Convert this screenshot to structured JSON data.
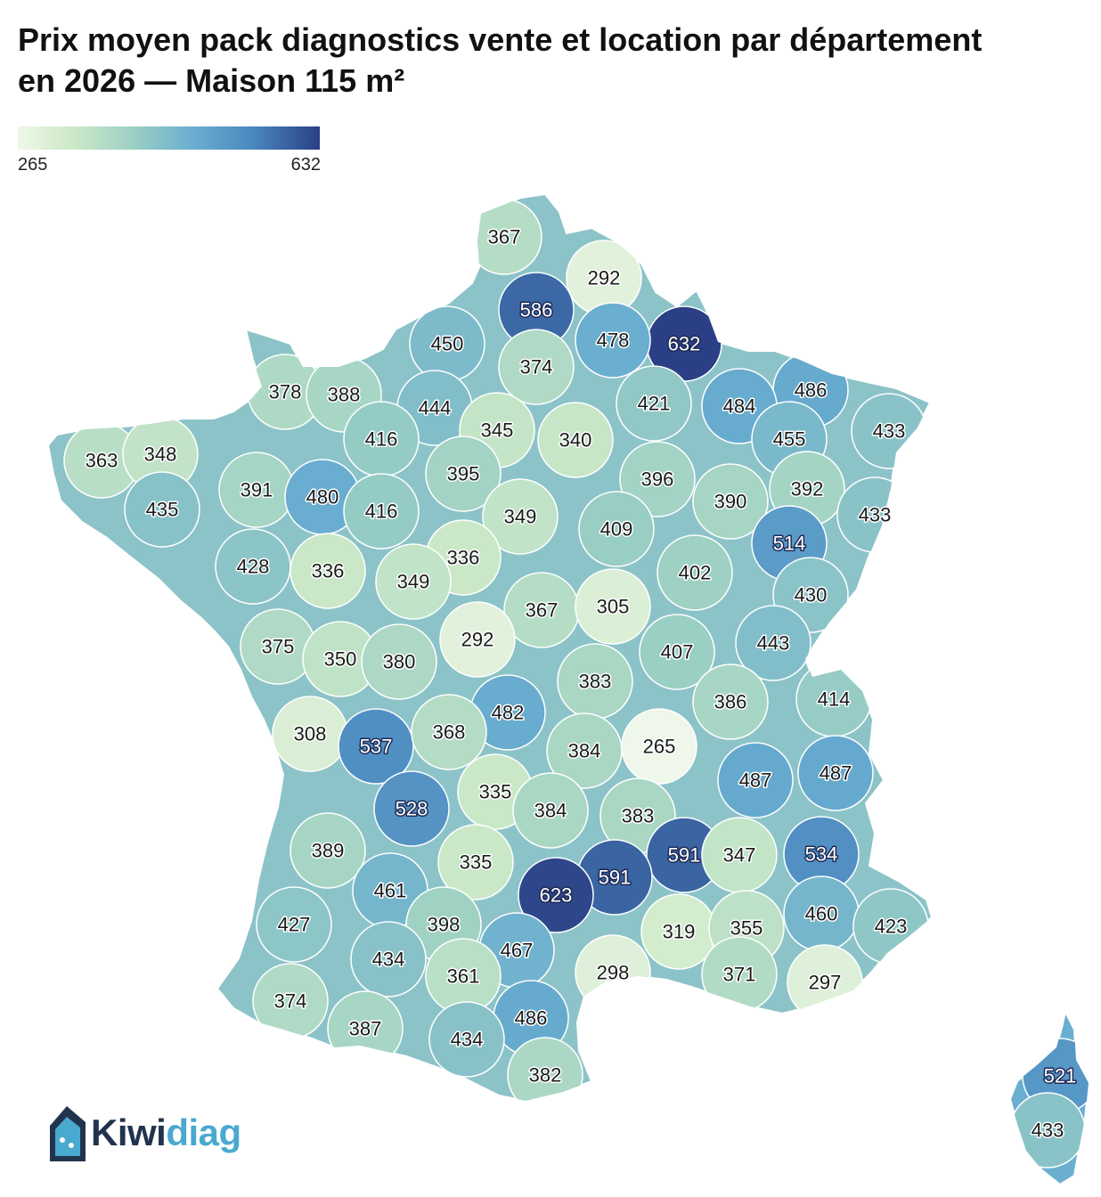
{
  "title": "Prix moyen pack diagnostics vente et location par département en 2026 — Maison 115 m²",
  "legend": {
    "min": "265",
    "max": "632"
  },
  "logo": {
    "part1": "Kiwi",
    "part2": "diag"
  },
  "colors": {
    "low": "#eef7ea",
    "mid": "#6aaed0",
    "high": "#2a3f85"
  },
  "map_values": [
    "367",
    "292",
    "586",
    "632",
    "450",
    "478",
    "374",
    "378",
    "388",
    "444",
    "486",
    "421",
    "484",
    "455",
    "433",
    "345",
    "340",
    "363",
    "348",
    "416",
    "391",
    "480",
    "395",
    "396",
    "390",
    "392",
    "435",
    "416",
    "349",
    "409",
    "433",
    "514",
    "428",
    "336",
    "336",
    "349",
    "402",
    "430",
    "367",
    "305",
    "375",
    "292",
    "443",
    "350",
    "380",
    "407",
    "383",
    "414",
    "386",
    "482",
    "308",
    "537",
    "368",
    "265",
    "384",
    "487",
    "487",
    "335",
    "528",
    "384",
    "383",
    "389",
    "591",
    "347",
    "534",
    "591",
    "335",
    "623",
    "461",
    "460",
    "423",
    "427",
    "398",
    "319",
    "355",
    "434",
    "467",
    "298",
    "361",
    "371",
    "297",
    "374",
    "486",
    "387",
    "434",
    "382",
    "521",
    "433"
  ]
}
